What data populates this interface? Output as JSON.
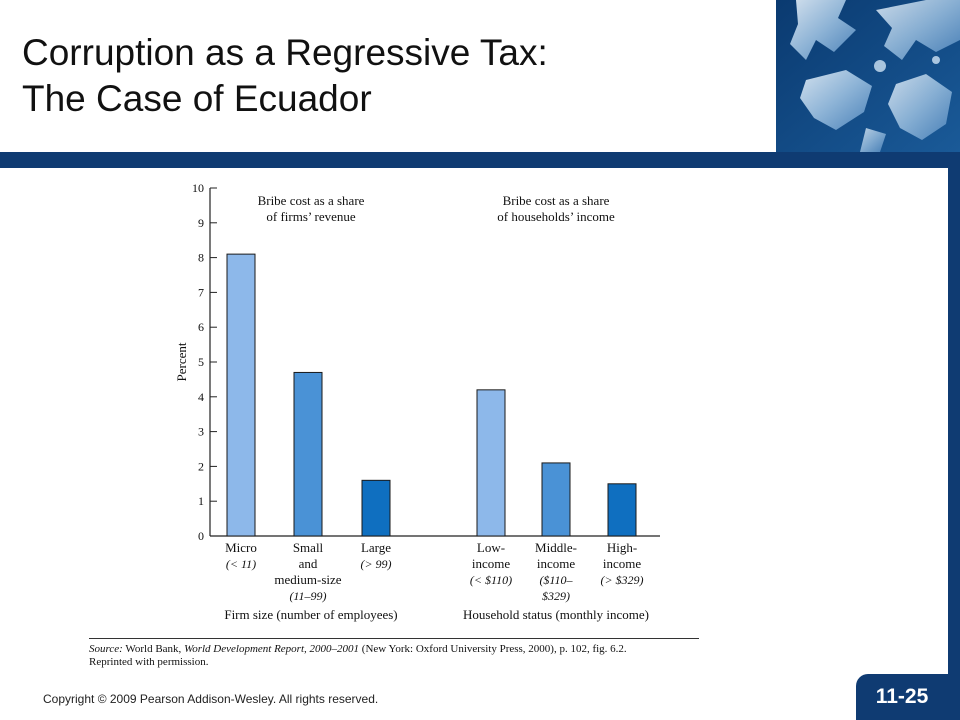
{
  "slide": {
    "title_line1": "Corruption as a Regressive Tax:",
    "title_line2": "The Case of Ecuador",
    "copyright": "Copyright © 2009 Pearson Addison-Wesley. All rights reserved.",
    "page_number": "11-25",
    "source_label": "Source:",
    "source_text_1": " World Bank, ",
    "source_italic": "World Development Report, 2000–2001",
    "source_text_2": " (New York: Oxford University Press, 2000), p. 102, fig. 6.2.",
    "source_text_3": "Reprinted with permission."
  },
  "chart_data": {
    "type": "bar",
    "ylabel": "Percent",
    "ylim": [
      0,
      10
    ],
    "yticks": [
      0,
      1,
      2,
      3,
      4,
      5,
      6,
      7,
      8,
      9,
      10
    ],
    "groups": [
      {
        "title_lines": [
          "Bribe cost as a share",
          "of firms’ revenue"
        ],
        "xlabel": "Firm size (number of employees)",
        "categories": [
          {
            "lines": [
              "Micro"
            ],
            "italic_lines": [
              "(< 11)"
            ],
            "value": 8.1,
            "color": "#8db8ea"
          },
          {
            "lines": [
              "Small",
              "and",
              "medium-size"
            ],
            "italic_lines": [
              "(11–99)"
            ],
            "value": 4.7,
            "color": "#4a92d6"
          },
          {
            "lines": [
              "Large"
            ],
            "italic_lines": [
              "(> 99)"
            ],
            "value": 1.6,
            "color": "#0f6fc0"
          }
        ]
      },
      {
        "title_lines": [
          "Bribe cost as a share",
          "of households’ income"
        ],
        "xlabel": "Household status (monthly income)",
        "categories": [
          {
            "lines": [
              "Low-",
              "income"
            ],
            "italic_lines": [
              "(< $110)"
            ],
            "value": 4.2,
            "color": "#8db8ea"
          },
          {
            "lines": [
              "Middle-",
              "income"
            ],
            "italic_lines": [
              "($110–",
              "$329)"
            ],
            "value": 2.1,
            "color": "#4a92d6"
          },
          {
            "lines": [
              "High-",
              "income"
            ],
            "italic_lines": [
              "(> $329)"
            ],
            "value": 1.5,
            "color": "#0f6fc0"
          }
        ]
      }
    ]
  }
}
